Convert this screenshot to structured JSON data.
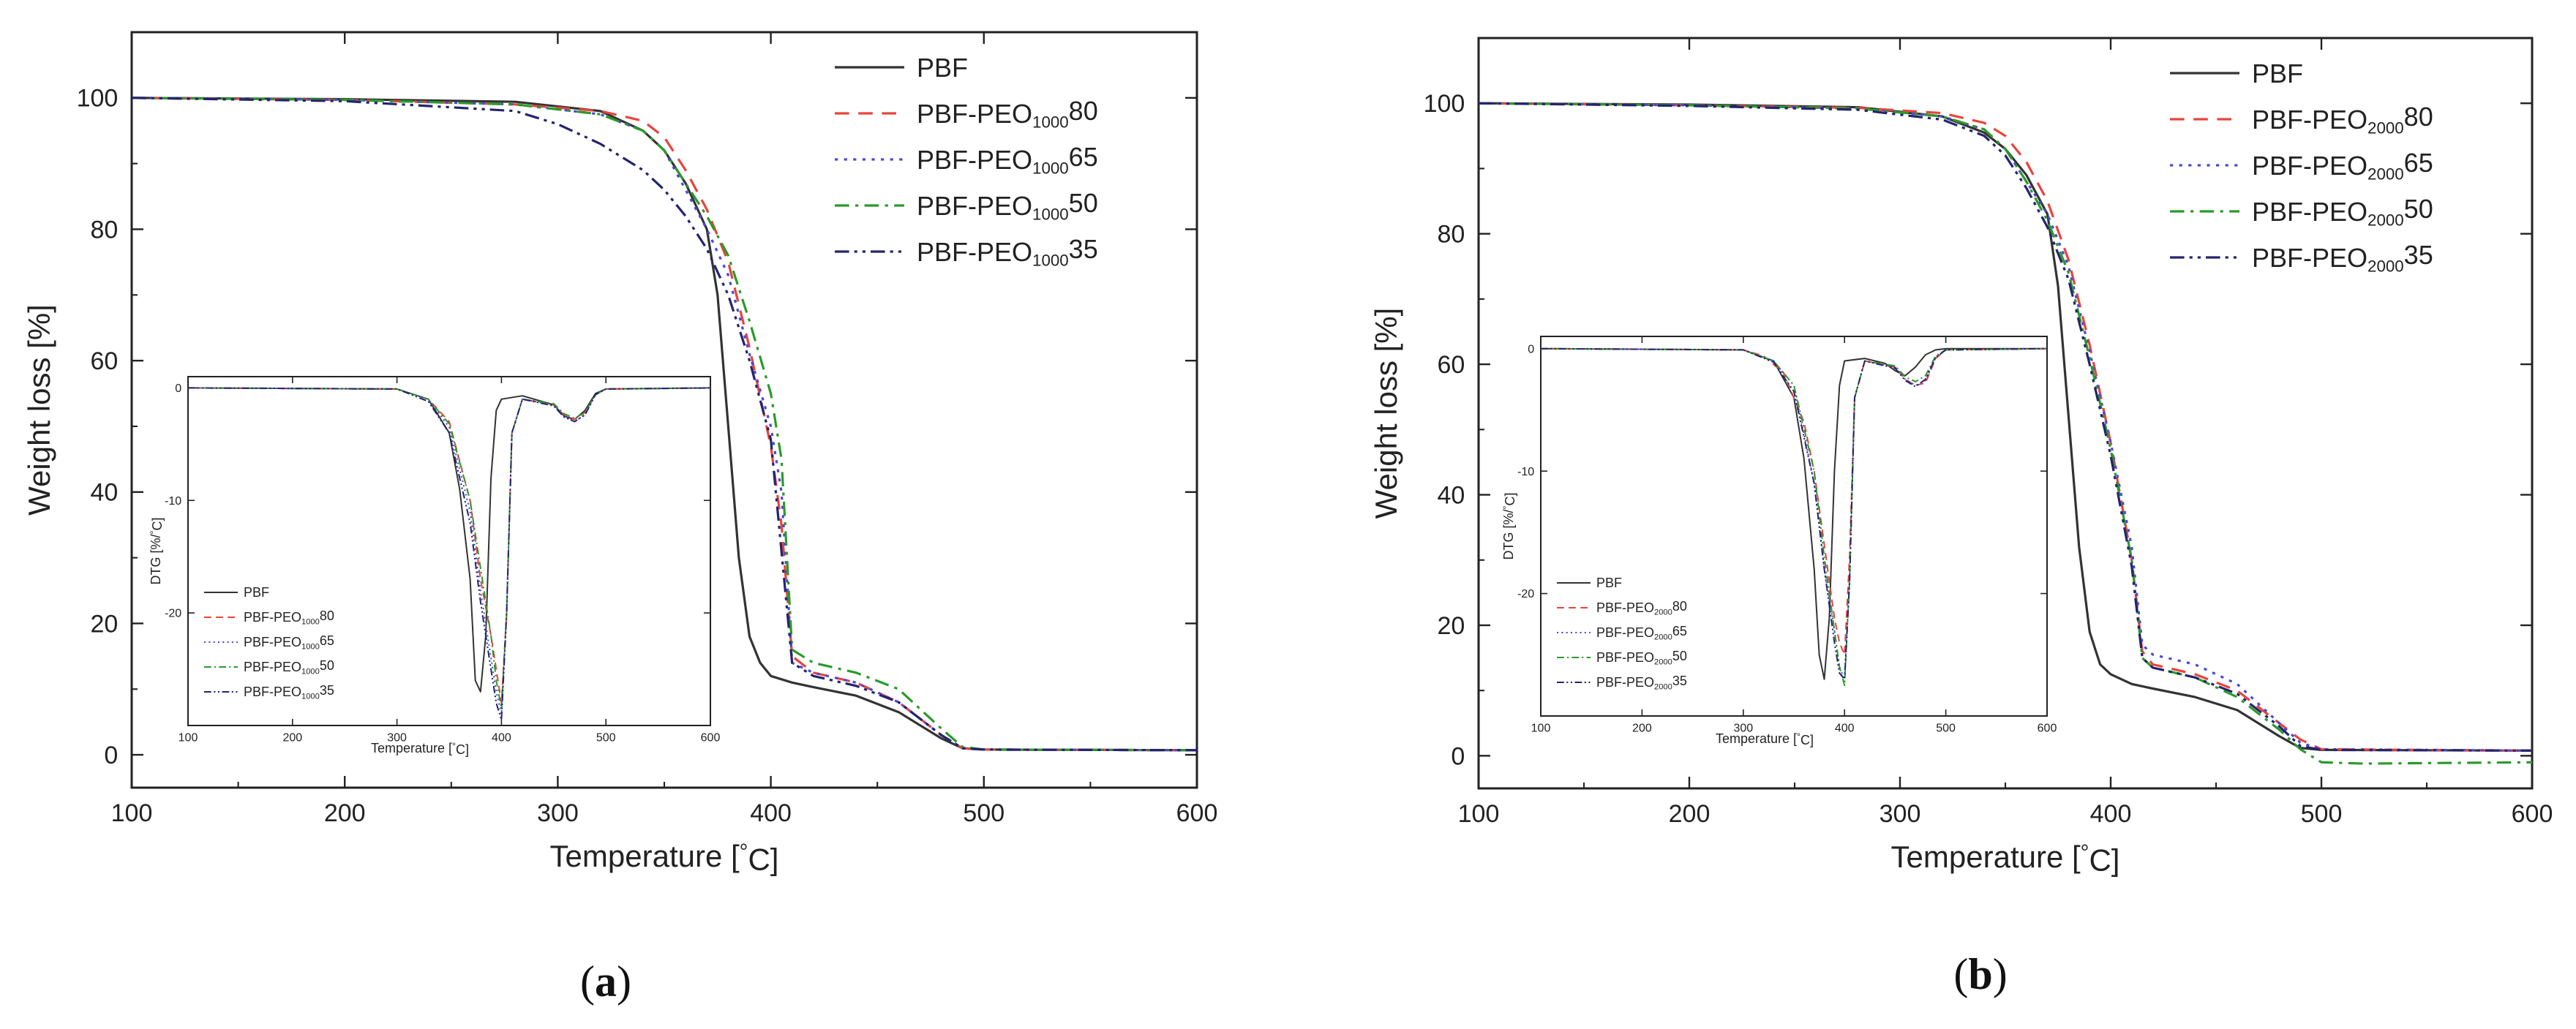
{
  "chart_data": [
    {
      "panel_label": "a",
      "type": "line",
      "xlabel": "Temperature [°C]",
      "ylabel": "Weight loss [%]",
      "xlim": [
        100,
        600
      ],
      "ylim": [
        -5,
        110
      ],
      "xticks": [
        100,
        200,
        300,
        400,
        500,
        600
      ],
      "yticks": [
        0,
        20,
        40,
        60,
        80,
        100
      ],
      "legend_position": "top-right",
      "series": [
        {
          "name": "PBF",
          "base": "PBF",
          "sub": "",
          "suffix": "",
          "color": "#333333",
          "dash": "solid",
          "x": [
            100,
            200,
            280,
            320,
            340,
            350,
            360,
            370,
            375,
            380,
            385,
            390,
            395,
            400,
            410,
            420,
            440,
            460,
            480,
            490,
            500,
            600
          ],
          "y": [
            100,
            99.8,
            99.4,
            98,
            95,
            92,
            87,
            80,
            70,
            50,
            30,
            18,
            14,
            12,
            11,
            10.3,
            9,
            6.5,
            2.5,
            1,
            0.8,
            0.7
          ]
        },
        {
          "name": "PBF-PEO100080",
          "base": "PBF-PEO",
          "sub": "1000",
          "suffix": "80",
          "color": "#e8443a",
          "dash": "dashed",
          "x": [
            100,
            200,
            280,
            320,
            340,
            350,
            360,
            370,
            380,
            390,
            400,
            405,
            410,
            420,
            440,
            460,
            480,
            490,
            500,
            600
          ],
          "y": [
            100,
            99.7,
            99,
            98,
            96.5,
            94,
            89,
            83,
            75,
            62,
            47,
            35,
            15,
            12.5,
            11,
            8,
            3,
            1,
            0.8,
            0.7
          ]
        },
        {
          "name": "PBF-PEO100065",
          "base": "PBF-PEO",
          "sub": "1000",
          "suffix": "65",
          "color": "#4a4ad8",
          "dash": "dotted",
          "x": [
            100,
            200,
            280,
            320,
            340,
            350,
            360,
            370,
            380,
            390,
            400,
            405,
            410,
            420,
            440,
            460,
            480,
            490,
            500,
            600
          ],
          "y": [
            100,
            99.7,
            99,
            97.5,
            95,
            92,
            86,
            80,
            73,
            61,
            50,
            40,
            14,
            12.5,
            11,
            8,
            3,
            1,
            0.8,
            0.7
          ]
        },
        {
          "name": "PBF-PEO100050",
          "base": "PBF-PEO",
          "sub": "1000",
          "suffix": "50",
          "color": "#2a9a2a",
          "dash": "dashdot",
          "x": [
            100,
            200,
            280,
            320,
            340,
            350,
            360,
            370,
            380,
            390,
            400,
            405,
            410,
            420,
            440,
            460,
            480,
            490,
            500,
            600
          ],
          "y": [
            100,
            99.7,
            99,
            97.5,
            95,
            92,
            87,
            82,
            76,
            66,
            55,
            45,
            16,
            14,
            12.5,
            10,
            4,
            1.2,
            0.8,
            0.7
          ]
        },
        {
          "name": "PBF-PEO100035",
          "base": "PBF-PEO",
          "sub": "1000",
          "suffix": "35",
          "color": "#24246e",
          "dash": "dashdotdot",
          "x": [
            100,
            200,
            280,
            300,
            320,
            340,
            350,
            360,
            370,
            380,
            390,
            400,
            410,
            420,
            440,
            460,
            480,
            490,
            500,
            600
          ],
          "y": [
            100,
            99.5,
            98,
            96,
            93,
            89,
            86,
            82,
            77,
            70,
            60,
            48,
            14,
            12,
            10.5,
            8,
            3,
            1,
            0.8,
            0.7
          ]
        }
      ],
      "inset": {
        "xlabel": "Temperature [°C]",
        "ylabel": "DTG [%/°C]",
        "xlim": [
          100,
          600
        ],
        "ylim": [
          -30,
          1
        ],
        "xticks": [
          100,
          200,
          300,
          400,
          500,
          600
        ],
        "yticks": [
          0,
          -10,
          -20
        ],
        "legend_position": "bottom-left",
        "series": [
          {
            "name": "PBF",
            "x": [
              100,
              300,
              330,
              350,
              360,
              370,
              375,
              380,
              385,
              390,
              395,
              400,
              420,
              450,
              460,
              470,
              480,
              490,
              500,
              600
            ],
            "y": [
              0,
              -0.1,
              -1,
              -4,
              -9,
              -17,
              -26,
              -27,
              -22,
              -8,
              -2,
              -1,
              -0.7,
              -1.5,
              -2.5,
              -2.8,
              -2,
              -0.5,
              -0.1,
              0
            ]
          },
          {
            "name": "PBF-PEO100080",
            "x": [
              100,
              300,
              330,
              350,
              370,
              380,
              390,
              395,
              400,
              405,
              410,
              420,
              450,
              460,
              470,
              480,
              490,
              500,
              600
            ],
            "y": [
              0,
              -0.1,
              -1,
              -3,
              -10,
              -17,
              -22,
              -25,
              -28,
              -20,
              -4,
              -1,
              -1.5,
              -2.4,
              -2.8,
              -2.2,
              -0.6,
              -0.1,
              0
            ]
          },
          {
            "name": "PBF-PEO100065",
            "x": [
              100,
              300,
              330,
              350,
              370,
              380,
              390,
              395,
              400,
              405,
              410,
              420,
              450,
              460,
              470,
              480,
              490,
              500,
              600
            ],
            "y": [
              0,
              -0.1,
              -1,
              -3.5,
              -11,
              -18,
              -24,
              -27,
              -29,
              -20,
              -4,
              -1,
              -1.5,
              -2.5,
              -3,
              -2.4,
              -0.6,
              -0.1,
              0
            ]
          },
          {
            "name": "PBF-PEO100050",
            "x": [
              100,
              300,
              330,
              350,
              370,
              380,
              390,
              395,
              400,
              405,
              410,
              420,
              450,
              460,
              470,
              480,
              490,
              500,
              600
            ],
            "y": [
              0,
              -0.1,
              -1,
              -3.2,
              -10,
              -16,
              -22,
              -26,
              -28.5,
              -20,
              -4,
              -1,
              -1.4,
              -2.3,
              -2.7,
              -2.2,
              -0.6,
              -0.1,
              0
            ]
          },
          {
            "name": "PBF-PEO100035",
            "x": [
              100,
              300,
              330,
              350,
              370,
              380,
              390,
              395,
              400,
              405,
              410,
              420,
              450,
              460,
              470,
              480,
              490,
              500,
              600
            ],
            "y": [
              0,
              -0.1,
              -1.2,
              -4,
              -12,
              -19,
              -25,
              -28,
              -29.5,
              -20,
              -4,
              -1,
              -1.6,
              -2.6,
              -3,
              -2.4,
              -0.6,
              -0.1,
              0
            ]
          }
        ]
      }
    },
    {
      "panel_label": "b",
      "type": "line",
      "xlabel": "Temperature [°C]",
      "ylabel": "Weight loss [%]",
      "xlim": [
        100,
        600
      ],
      "ylim": [
        -5,
        110
      ],
      "xticks": [
        100,
        200,
        300,
        400,
        500,
        600
      ],
      "yticks": [
        0,
        20,
        40,
        60,
        80,
        100
      ],
      "legend_position": "top-right",
      "series": [
        {
          "name": "PBF",
          "base": "PBF",
          "sub": "",
          "suffix": "",
          "color": "#333333",
          "dash": "solid",
          "x": [
            100,
            200,
            280,
            320,
            340,
            350,
            360,
            370,
            375,
            380,
            385,
            390,
            395,
            400,
            410,
            420,
            440,
            460,
            480,
            490,
            500,
            600
          ],
          "y": [
            100,
            99.8,
            99.4,
            98,
            95.5,
            93,
            89,
            83,
            72,
            52,
            32,
            19,
            14,
            12.5,
            11,
            10.3,
            9,
            7,
            3,
            1.2,
            0.9,
            0.8
          ]
        },
        {
          "name": "PBF-PEO200080",
          "base": "PBF-PEO",
          "sub": "2000",
          "suffix": "80",
          "color": "#e8443a",
          "dash": "dashed",
          "x": [
            100,
            200,
            280,
            320,
            340,
            350,
            360,
            370,
            380,
            390,
            400,
            410,
            415,
            420,
            440,
            460,
            480,
            490,
            500,
            600
          ],
          "y": [
            100,
            99.7,
            99.3,
            98.5,
            97,
            95,
            91,
            85,
            76,
            63,
            48,
            30,
            16,
            14,
            12.5,
            10,
            5,
            2.5,
            1,
            0.8
          ]
        },
        {
          "name": "PBF-PEO200065",
          "base": "PBF-PEO",
          "sub": "2000",
          "suffix": "65",
          "color": "#4a4ad8",
          "dash": "dotted",
          "x": [
            100,
            200,
            280,
            320,
            340,
            350,
            360,
            370,
            380,
            390,
            400,
            410,
            415,
            420,
            440,
            460,
            480,
            490,
            500,
            600
          ],
          "y": [
            100,
            99.7,
            99.2,
            98,
            96,
            93,
            88,
            83,
            75,
            62,
            48,
            32,
            17,
            15.5,
            14,
            11,
            5,
            2,
            1,
            0.8
          ]
        },
        {
          "name": "PBF-PEO200050",
          "base": "PBF-PEO",
          "sub": "2000",
          "suffix": "50",
          "color": "#2a9a2a",
          "dash": "dashdot",
          "x": [
            100,
            200,
            280,
            320,
            340,
            350,
            360,
            370,
            380,
            390,
            400,
            410,
            415,
            420,
            440,
            460,
            480,
            490,
            500,
            520,
            600
          ],
          "y": [
            100,
            99.7,
            99.2,
            98,
            96,
            93,
            88,
            82,
            74,
            61,
            47,
            30,
            15,
            13.5,
            12,
            9,
            4,
            1,
            -1,
            -1.2,
            -1
          ]
        },
        {
          "name": "PBF-PEO200035",
          "base": "PBF-PEO",
          "sub": "2000",
          "suffix": "35",
          "color": "#24246e",
          "dash": "dashdotdot",
          "x": [
            100,
            200,
            280,
            320,
            340,
            350,
            360,
            370,
            380,
            390,
            400,
            410,
            415,
            420,
            440,
            460,
            480,
            490,
            500,
            600
          ],
          "y": [
            100,
            99.6,
            99,
            97.5,
            95,
            92,
            87,
            81,
            73,
            60,
            46,
            29,
            15,
            13.5,
            12,
            9.5,
            4.5,
            1.5,
            0.9,
            0.8
          ]
        }
      ],
      "inset": {
        "xlabel": "Temperature [°C]",
        "ylabel": "DTG [%/°C]",
        "xlim": [
          100,
          600
        ],
        "ylim": [
          -30,
          1
        ],
        "xticks": [
          100,
          200,
          300,
          400,
          500,
          600
        ],
        "yticks": [
          0,
          -10,
          -20
        ],
        "legend_position": "bottom-left",
        "series": [
          {
            "name": "PBF",
            "x": [
              100,
              300,
              330,
              350,
              360,
              370,
              375,
              380,
              385,
              390,
              395,
              400,
              420,
              440,
              450,
              460,
              470,
              480,
              490,
              500,
              600
            ],
            "y": [
              0,
              -0.1,
              -1,
              -4,
              -9,
              -18,
              -25,
              -27,
              -22,
              -10,
              -3,
              -1,
              -0.8,
              -1.2,
              -1.8,
              -2.2,
              -1.5,
              -0.5,
              -0.1,
              0,
              0
            ]
          },
          {
            "name": "PBF-PEO200080",
            "x": [
              100,
              300,
              320,
              340,
              360,
              370,
              380,
              390,
              395,
              400,
              405,
              410,
              420,
              450,
              460,
              470,
              480,
              490,
              500,
              600
            ],
            "y": [
              0,
              -0.1,
              -0.6,
              -2,
              -6,
              -10,
              -16,
              -22,
              -24,
              -25,
              -17,
              -4,
              -1,
              -1.5,
              -2.5,
              -3,
              -2.8,
              -0.8,
              -0.1,
              0
            ]
          },
          {
            "name": "PBF-PEO200065",
            "x": [
              100,
              300,
              330,
              350,
              370,
              380,
              390,
              395,
              400,
              405,
              410,
              420,
              450,
              460,
              470,
              480,
              490,
              500,
              600
            ],
            "y": [
              0,
              -0.1,
              -1,
              -3,
              -11,
              -18,
              -23,
              -26,
              -27,
              -19,
              -4,
              -1,
              -1.5,
              -2.5,
              -3,
              -2.6,
              -0.7,
              -0.1,
              0
            ]
          },
          {
            "name": "PBF-PEO200050",
            "x": [
              100,
              300,
              330,
              350,
              370,
              380,
              390,
              395,
              400,
              405,
              410,
              420,
              450,
              460,
              470,
              480,
              490,
              500,
              600
            ],
            "y": [
              0,
              -0.1,
              -1,
              -3,
              -10,
              -17,
              -23,
              -26,
              -27.5,
              -19,
              -4,
              -1,
              -1.4,
              -2.3,
              -2.7,
              -2.2,
              -0.6,
              -0.1,
              0
            ]
          },
          {
            "name": "PBF-PEO200035",
            "x": [
              100,
              300,
              330,
              350,
              370,
              380,
              390,
              395,
              400,
              405,
              410,
              420,
              450,
              460,
              470,
              480,
              490,
              500,
              600
            ],
            "y": [
              0,
              -0.1,
              -1.1,
              -3.5,
              -11,
              -18,
              -24,
              -26.5,
              -27,
              -19,
              -4,
              -1,
              -1.6,
              -2.6,
              -3.1,
              -2.5,
              -0.7,
              -0.1,
              0
            ]
          }
        ]
      }
    }
  ]
}
